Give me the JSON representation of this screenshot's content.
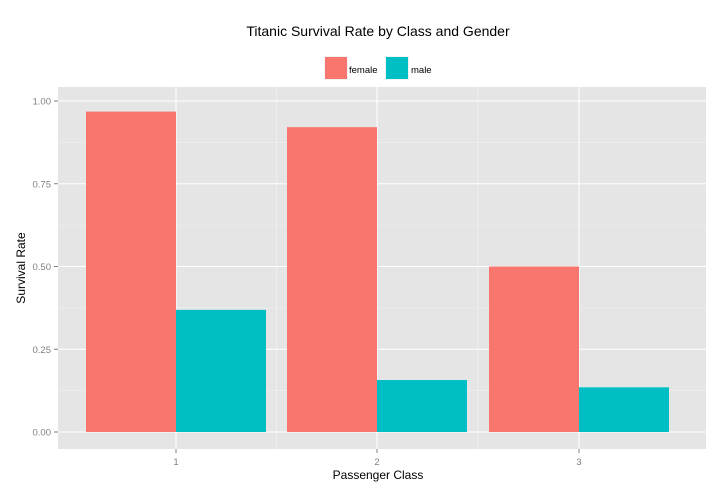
{
  "chart_data": {
    "type": "bar",
    "title": "Titanic Survival Rate by Class and Gender",
    "xlabel": "Passenger Class",
    "ylabel": "Survival Rate",
    "categories": [
      "1",
      "2",
      "3"
    ],
    "series": [
      {
        "name": "female",
        "color": "#F8766D",
        "values": [
          0.968,
          0.921,
          0.5
        ]
      },
      {
        "name": "male",
        "color": "#00BFC4",
        "values": [
          0.369,
          0.157,
          0.135
        ]
      }
    ],
    "ylim": [
      0,
      1
    ],
    "yticks": [
      0.0,
      0.25,
      0.5,
      0.75,
      1.0
    ],
    "ytick_labels": [
      "0.00",
      "0.25",
      "0.50",
      "0.75",
      "1.00"
    ],
    "legend_position": "top",
    "grid": true,
    "panel_background": "#E5E5E5"
  }
}
